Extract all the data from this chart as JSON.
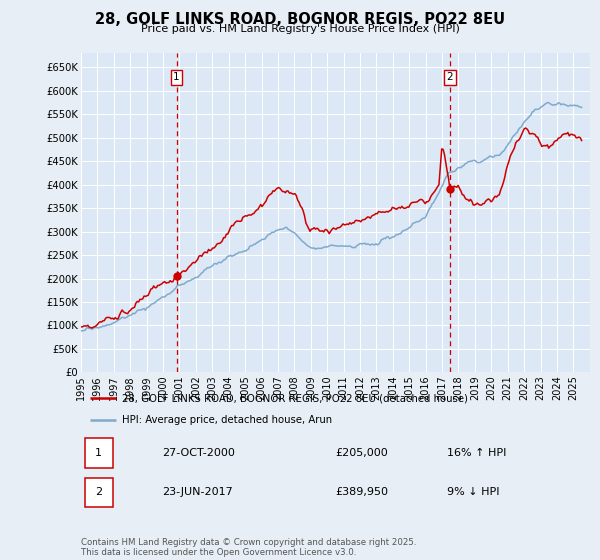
{
  "title": "28, GOLF LINKS ROAD, BOGNOR REGIS, PO22 8EU",
  "subtitle": "Price paid vs. HM Land Registry's House Price Index (HPI)",
  "background_color": "#e8eef5",
  "plot_bg_color": "#dce8f5",
  "grid_color": "#ffffff",
  "ylim": [
    0,
    680000
  ],
  "yticks": [
    0,
    50000,
    100000,
    150000,
    200000,
    250000,
    300000,
    350000,
    400000,
    450000,
    500000,
    550000,
    600000,
    650000
  ],
  "ytick_labels": [
    "£0",
    "£50K",
    "£100K",
    "£150K",
    "£200K",
    "£250K",
    "£300K",
    "£350K",
    "£400K",
    "£450K",
    "£500K",
    "£550K",
    "£600K",
    "£650K"
  ],
  "xlim_start": 1995.0,
  "xlim_end": 2026.0,
  "xticks": [
    1995,
    1996,
    1997,
    1998,
    1999,
    2000,
    2001,
    2002,
    2003,
    2004,
    2005,
    2006,
    2007,
    2008,
    2009,
    2010,
    2011,
    2012,
    2013,
    2014,
    2015,
    2016,
    2017,
    2018,
    2019,
    2020,
    2021,
    2022,
    2023,
    2024,
    2025
  ],
  "sale1_x": 2000.82,
  "sale1_y": 205000,
  "sale1_label": "1",
  "sale2_x": 2017.48,
  "sale2_y": 389950,
  "sale2_label": "2",
  "legend_line1": "28, GOLF LINKS ROAD, BOGNOR REGIS, PO22 8EU (detached house)",
  "legend_line2": "HPI: Average price, detached house, Arun",
  "table_row1_num": "1",
  "table_row1_date": "27-OCT-2000",
  "table_row1_price": "£205,000",
  "table_row1_hpi": "16% ↑ HPI",
  "table_row2_num": "2",
  "table_row2_date": "23-JUN-2017",
  "table_row2_price": "£389,950",
  "table_row2_hpi": "9% ↓ HPI",
  "footer": "Contains HM Land Registry data © Crown copyright and database right 2025.\nThis data is licensed under the Open Government Licence v3.0.",
  "red_line_color": "#cc0000",
  "blue_line_color": "#7faacc",
  "dashed_line_color": "#cc0000"
}
